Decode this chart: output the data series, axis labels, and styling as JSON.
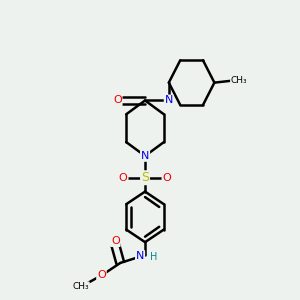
{
  "background_color": "#eef2ee",
  "atom_colors": {
    "C": "#000000",
    "N": "#0000ee",
    "O": "#ee0000",
    "S": "#bbbb00",
    "H": "#008888"
  },
  "bond_color": "#000000",
  "bond_width": 1.8,
  "figsize": [
    3.0,
    3.0
  ],
  "dpi": 100
}
